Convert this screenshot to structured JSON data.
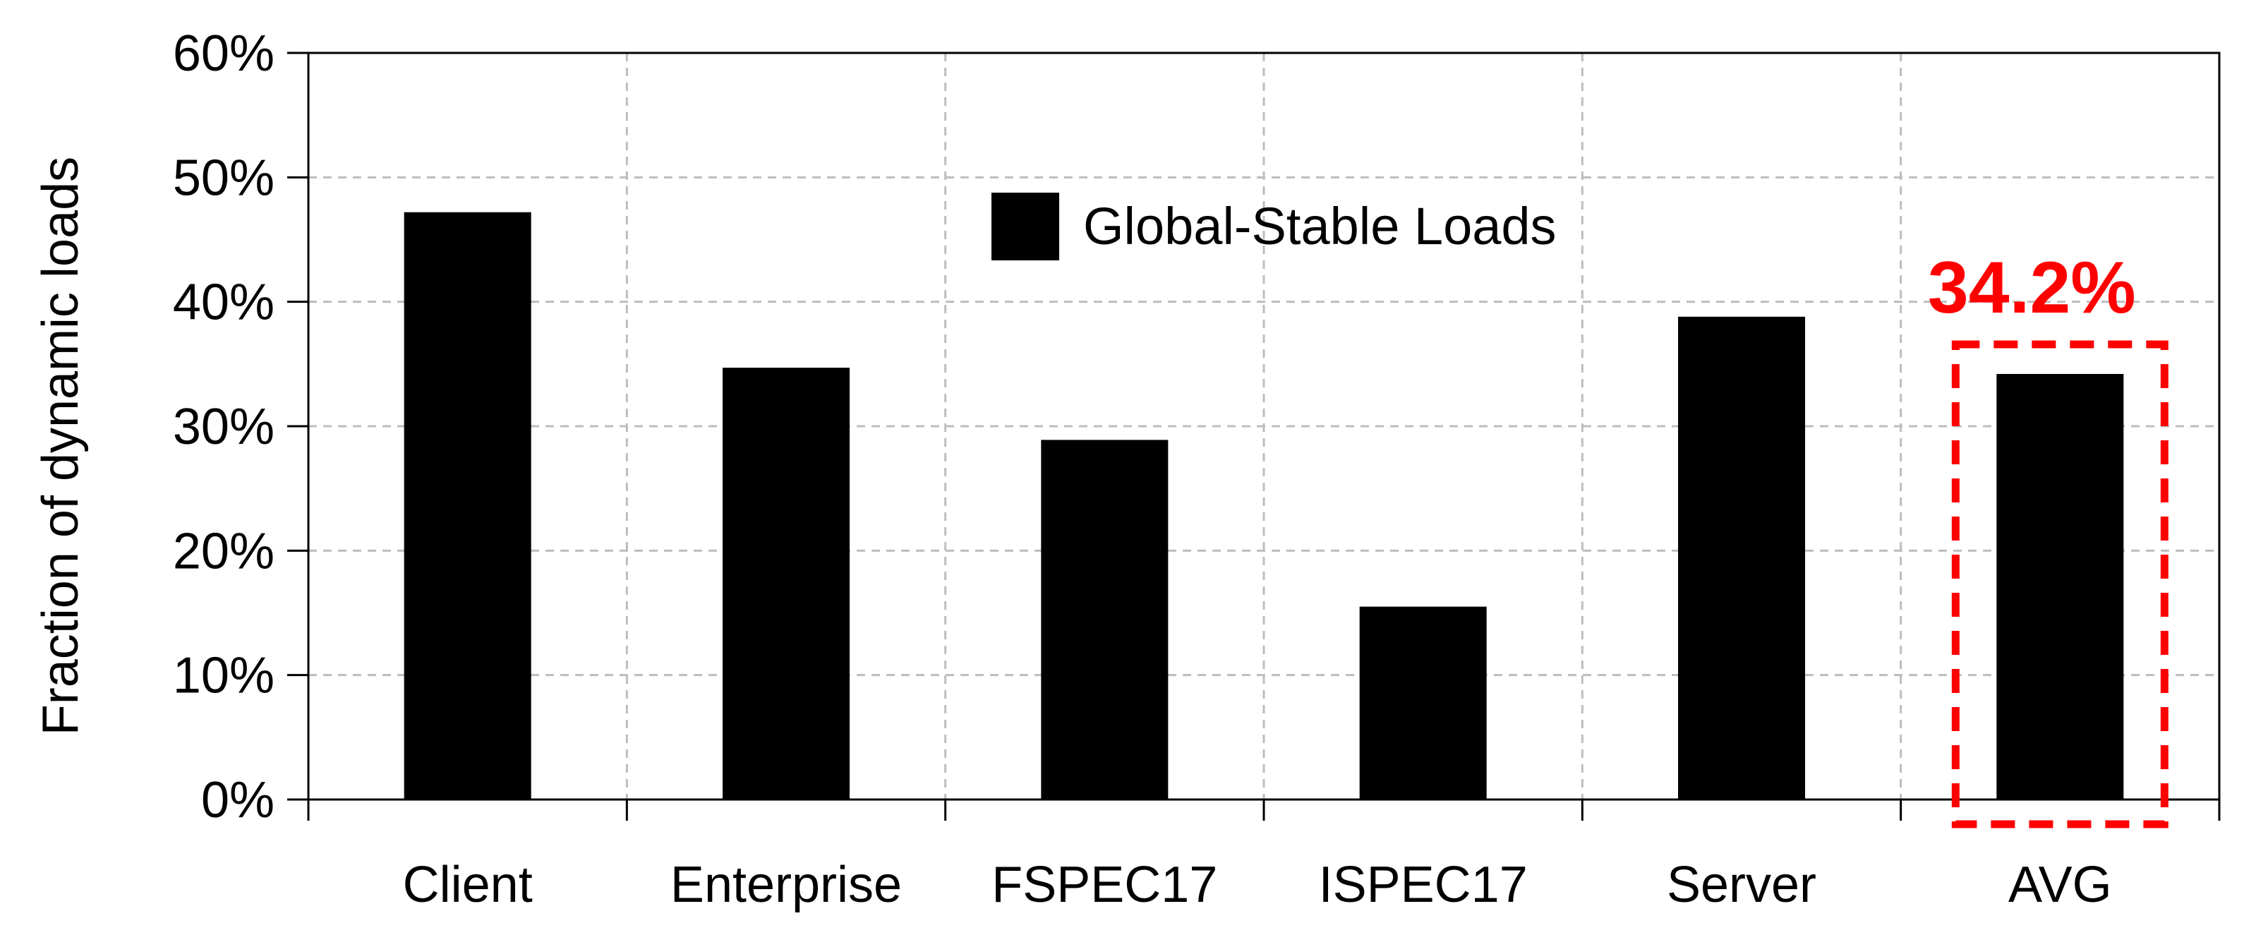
{
  "chart_data": {
    "type": "bar",
    "categories": [
      "Client",
      "Enterprise",
      "FSPEC17",
      "ISPEC17",
      "Server",
      "AVG"
    ],
    "series": [
      {
        "name": "Global-Stable Loads",
        "values": [
          47.2,
          34.7,
          28.9,
          15.5,
          38.8,
          34.2
        ],
        "color": "#000000"
      }
    ],
    "title": "",
    "xlabel": "",
    "ylabel": "Fraction of dynamic loads",
    "ylim": [
      0,
      60
    ],
    "yticks": [
      0,
      10,
      20,
      30,
      40,
      50,
      60
    ],
    "ytick_labels": [
      "0%",
      "10%",
      "20%",
      "30%",
      "40%",
      "50%",
      "60%"
    ],
    "grid": true,
    "legend": {
      "placement": "top-center",
      "entries": [
        "Global-Stable Loads"
      ]
    },
    "annotations": [
      {
        "text": "34.2%",
        "target_category": "AVG",
        "color": "#ff0000",
        "style": "dashed-box-highlight"
      }
    ]
  }
}
